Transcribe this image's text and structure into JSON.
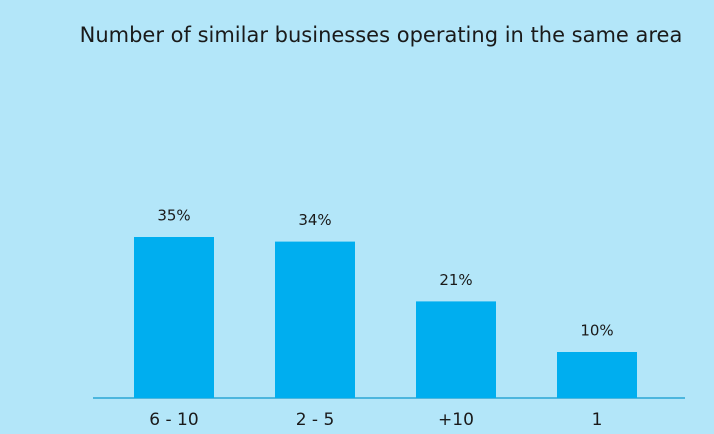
{
  "chart_data": {
    "type": "bar",
    "title": "Number of similar businesses operating in the same area",
    "categories": [
      "6 - 10",
      "2 - 5",
      "+10",
      "1"
    ],
    "values": [
      35,
      34,
      21,
      10
    ],
    "value_labels": [
      "35%",
      "34%",
      "21%",
      "10%"
    ],
    "color": "#00aeef"
  }
}
